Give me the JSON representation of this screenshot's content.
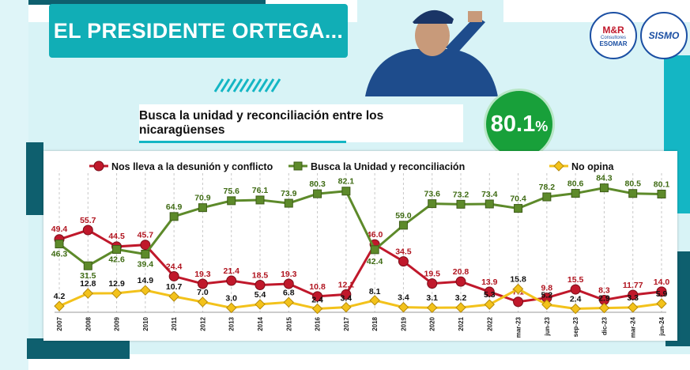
{
  "header": {
    "title": "EL PRESIDENTE ORTEGA...",
    "subtitle": "Busca la unidad y reconciliación entre los nicaragüenses",
    "highlight_value": "80.1",
    "highlight_unit": "%"
  },
  "logos": {
    "mr_line1": "M&R",
    "mr_line2": "Consultores",
    "mr_line3": "ESOMAR",
    "sisma_text": "SISMO"
  },
  "colors": {
    "teal": "#11aeb6",
    "dark_teal": "#0e5f6e",
    "red": "#c0182b",
    "green": "#5d8a2a",
    "yellow": "#f3c21b",
    "circle_green": "#18a03a"
  },
  "chart_data": {
    "type": "line",
    "categories": [
      "2007",
      "2008",
      "2009",
      "2010",
      "2011",
      "2012",
      "2013",
      "2014",
      "2015",
      "2016",
      "2017",
      "2018",
      "2019",
      "2020",
      "2021",
      "2022",
      "mar-23",
      "jun-23",
      "sep-23",
      "dic-23",
      "mar-24",
      "jun-24"
    ],
    "series": [
      {
        "name": "Nos lleva a la desunión y conflicto",
        "color": "#c0182b",
        "marker": "circle",
        "values": [
          49.4,
          55.7,
          44.5,
          45.7,
          24.4,
          19.3,
          21.4,
          18.5,
          19.3,
          10.8,
          12.1,
          46.0,
          34.5,
          19.5,
          20.8,
          13.9,
          7.1,
          9.8,
          15.5,
          8.3,
          11.77,
          14.0
        ],
        "labels": [
          "49.4",
          "55.7",
          "44.5",
          "45.7",
          "24.4",
          "19.3",
          "21.4",
          "18.5",
          "19.3",
          "10.8",
          "12.1",
          "46.0",
          "34.5",
          "19.5",
          "20.8",
          "13.9",
          "7.1",
          "9.8",
          "15.5",
          "8.3",
          "11.77",
          "14.0"
        ]
      },
      {
        "name": "Busca la Unidad y reconciliación",
        "color": "#5d8a2a",
        "marker": "square",
        "values": [
          46.3,
          31.5,
          42.6,
          39.4,
          64.9,
          70.9,
          75.6,
          76.1,
          73.9,
          80.3,
          82.1,
          42.4,
          59.0,
          73.6,
          73.2,
          73.4,
          70.4,
          78.2,
          80.6,
          84.3,
          80.5,
          80.1
        ],
        "labels": [
          "46.3",
          "31.5",
          "42.6",
          "39.4",
          "64.9",
          "70.9",
          "75.6",
          "76.1",
          "73.9",
          "80.3",
          "82.1",
          "42.4",
          "59.0",
          "73.6",
          "73.2",
          "73.4",
          "70.4",
          "78.2",
          "80.6",
          "84.3",
          "80.5",
          "80.1"
        ]
      },
      {
        "name": "No opina",
        "color": "#f3c21b",
        "marker": "diamond",
        "values": [
          4.2,
          12.8,
          12.9,
          14.9,
          10.7,
          7.0,
          3.0,
          5.4,
          6.8,
          2.4,
          3.4,
          8.1,
          3.4,
          3.1,
          3.2,
          5.3,
          15.8,
          5.2,
          2.4,
          2.9,
          3.3,
          5.9
        ],
        "labels": [
          "4.2",
          "12.8",
          "12.9",
          "14.9",
          "10.7",
          "7.0",
          "3.0",
          "5.4",
          "6.8",
          "2.4",
          "3.4",
          "8.1",
          "3.4",
          "3.1",
          "3.2",
          "5.3",
          "15.8",
          "5.2",
          "2.4",
          "2.9",
          "3.3",
          "5.9"
        ]
      }
    ],
    "legend": [
      "Nos lleva a la desunión y conflicto",
      "Busca la Unidad y reconciliación",
      "No opina"
    ],
    "legend_display": [
      "Nos lleva a la desunión y conflicto",
      "Busca la Unidad y reconciliación",
      "No opina"
    ],
    "ylim": [
      0,
      90
    ],
    "legend_position": "top",
    "grid": "vertical-dashed"
  }
}
